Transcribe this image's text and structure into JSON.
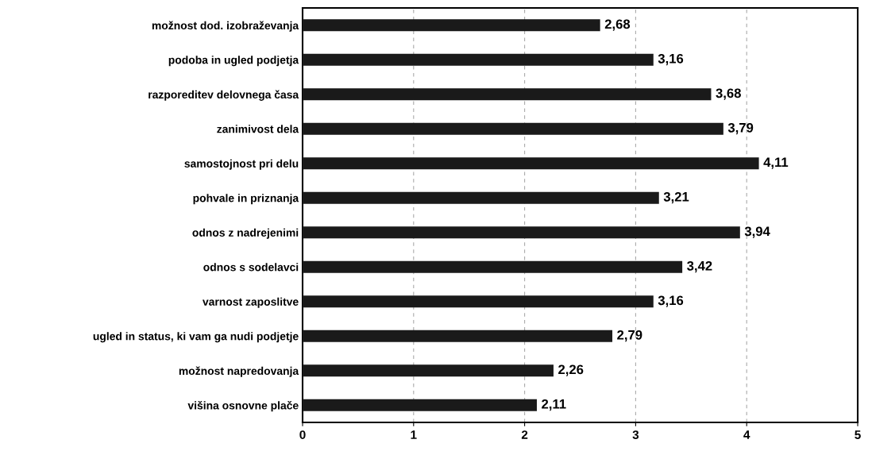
{
  "chart_data": {
    "type": "bar",
    "orientation": "horizontal",
    "categories": [
      "možnost dod. izobraževanja",
      "podoba in ugled podjetja",
      "razporeditev delovnega časa",
      "zanimivost dela",
      "samostojnost pri delu",
      "pohvale in priznanja",
      "odnos z nadrejenimi",
      "odnos s sodelavci",
      "varnost zaposlitve",
      "ugled in status, ki vam ga nudi podjetje",
      "možnost napredovanja",
      "višina osnovne plače"
    ],
    "values": [
      2.68,
      3.16,
      3.68,
      3.79,
      4.11,
      3.21,
      3.94,
      3.42,
      3.16,
      2.79,
      2.26,
      2.11
    ],
    "value_labels": [
      "2,68",
      "3,16",
      "3,68",
      "3,79",
      "4,11",
      "3,21",
      "3,94",
      "3,42",
      "3,16",
      "2,79",
      "2,26",
      "2,11"
    ],
    "color": "#1a1a1a",
    "xlim": [
      0,
      5
    ],
    "xticks": [
      0,
      1,
      2,
      3,
      4,
      5
    ],
    "grid": "x"
  }
}
